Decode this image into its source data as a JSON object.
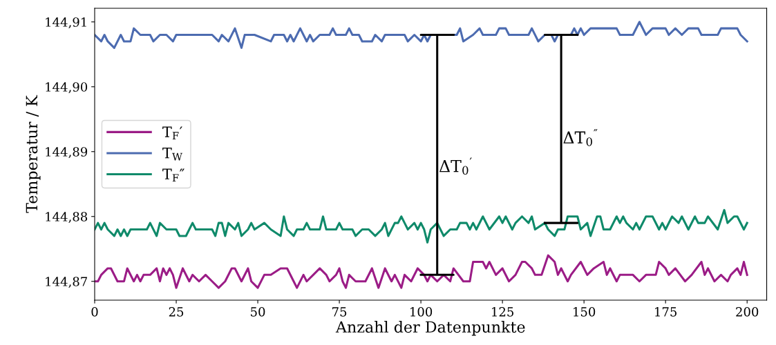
{
  "chart_data": {
    "type": "line",
    "xlabel": "Anzahl der Datenpunkte",
    "ylabel": "Temperatur / K",
    "xlim": [
      0,
      206
    ],
    "xticks": [
      0,
      25,
      50,
      75,
      100,
      125,
      150,
      175,
      200
    ],
    "ylim": [
      144.8671,
      144.9121
    ],
    "yticks": [
      {
        "value": 144.87,
        "label": "144,87"
      },
      {
        "value": 144.88,
        "label": "144,88"
      },
      {
        "value": 144.89,
        "label": "144,89"
      },
      {
        "value": 144.9,
        "label": "144,90"
      },
      {
        "value": 144.91,
        "label": "144,91"
      }
    ],
    "legend": "center left",
    "grid": false,
    "marker": "none",
    "line_style": "solid",
    "series": [
      {
        "name": "T$_{F}$′",
        "color": "#9b1c86",
        "x": [
          0,
          1,
          2,
          4,
          5,
          7,
          9,
          10,
          12,
          13,
          14,
          15,
          17,
          19,
          20,
          21,
          22,
          23,
          24,
          25,
          27,
          29,
          30,
          32,
          34,
          36,
          38,
          40,
          42,
          43,
          45,
          47,
          48,
          50,
          52,
          54,
          57,
          59,
          61,
          62,
          64,
          65,
          67,
          69,
          71,
          72,
          74,
          75,
          76,
          77,
          78,
          80,
          83,
          85,
          87,
          89,
          91,
          92,
          94,
          95,
          97,
          99,
          101,
          102,
          103,
          105,
          107,
          109,
          110,
          113,
          115,
          116,
          119,
          120,
          121,
          123,
          125,
          127,
          129,
          131,
          132,
          134,
          135,
          137,
          139,
          141,
          142,
          143,
          145,
          146,
          149,
          151,
          153,
          156,
          157,
          158,
          160,
          161,
          163,
          165,
          167,
          169,
          172,
          173,
          175,
          176,
          178,
          181,
          183,
          186,
          187,
          188,
          190,
          192,
          194,
          195,
          197,
          198,
          199,
          200
        ],
        "values": [
          144.87,
          144.87,
          144.871,
          144.872,
          144.872,
          144.87,
          144.87,
          144.872,
          144.87,
          144.871,
          144.87,
          144.871,
          144.871,
          144.872,
          144.87,
          144.872,
          144.871,
          144.872,
          144.871,
          144.869,
          144.872,
          144.87,
          144.871,
          144.87,
          144.871,
          144.87,
          144.869,
          144.87,
          144.872,
          144.872,
          144.87,
          144.872,
          144.87,
          144.869,
          144.871,
          144.871,
          144.872,
          144.872,
          144.87,
          144.869,
          144.871,
          144.87,
          144.871,
          144.872,
          144.871,
          144.87,
          144.871,
          144.872,
          144.87,
          144.869,
          144.871,
          144.87,
          144.87,
          144.872,
          144.869,
          144.872,
          144.87,
          144.871,
          144.869,
          144.871,
          144.87,
          144.872,
          144.871,
          144.87,
          144.871,
          144.87,
          144.871,
          144.87,
          144.872,
          144.87,
          144.87,
          144.873,
          144.873,
          144.872,
          144.873,
          144.871,
          144.872,
          144.87,
          144.871,
          144.873,
          144.873,
          144.872,
          144.871,
          144.871,
          144.874,
          144.873,
          144.871,
          144.872,
          144.87,
          144.871,
          144.873,
          144.871,
          144.872,
          144.873,
          144.871,
          144.872,
          144.87,
          144.871,
          144.871,
          144.871,
          144.87,
          144.871,
          144.871,
          144.873,
          144.872,
          144.871,
          144.872,
          144.87,
          144.871,
          144.873,
          144.871,
          144.872,
          144.87,
          144.871,
          144.87,
          144.871,
          144.872,
          144.871,
          144.873,
          144.871
        ]
      },
      {
        "name": "T$_{W}$",
        "color": "#4c6bb0",
        "x": [
          0,
          2,
          3,
          4,
          6,
          8,
          9,
          11,
          12,
          14,
          17,
          18,
          20,
          22,
          24,
          25,
          36,
          38,
          39,
          41,
          43,
          45,
          46,
          49,
          54,
          55,
          58,
          59,
          60,
          61,
          63,
          65,
          66,
          67,
          69,
          72,
          73,
          74,
          77,
          78,
          79,
          81,
          82,
          85,
          86,
          88,
          89,
          93,
          95,
          96,
          98,
          100,
          101,
          102,
          103,
          111,
          112,
          113,
          116,
          118,
          119,
          123,
          124,
          126,
          127,
          133,
          134,
          136,
          138,
          140,
          141,
          142,
          146,
          147,
          148,
          149,
          150,
          152,
          160,
          161,
          165,
          167,
          169,
          171,
          175,
          176,
          178,
          180,
          182,
          185,
          186,
          187,
          191,
          192,
          197,
          198,
          200
        ],
        "values": [
          144.908,
          144.907,
          144.908,
          144.907,
          144.906,
          144.908,
          144.907,
          144.907,
          144.909,
          144.908,
          144.908,
          144.907,
          144.908,
          144.908,
          144.907,
          144.908,
          144.908,
          144.907,
          144.908,
          144.907,
          144.909,
          144.906,
          144.908,
          144.908,
          144.907,
          144.908,
          144.908,
          144.907,
          144.908,
          144.907,
          144.909,
          144.907,
          144.908,
          144.907,
          144.908,
          144.908,
          144.909,
          144.908,
          144.908,
          144.909,
          144.908,
          144.908,
          144.907,
          144.907,
          144.908,
          144.907,
          144.908,
          144.908,
          144.908,
          144.907,
          144.908,
          144.907,
          144.908,
          144.907,
          144.908,
          144.908,
          144.909,
          144.907,
          144.908,
          144.909,
          144.908,
          144.908,
          144.909,
          144.909,
          144.908,
          144.908,
          144.909,
          144.907,
          144.908,
          144.908,
          144.907,
          144.908,
          144.908,
          144.909,
          144.908,
          144.909,
          144.908,
          144.909,
          144.909,
          144.908,
          144.908,
          144.91,
          144.908,
          144.909,
          144.909,
          144.908,
          144.909,
          144.908,
          144.909,
          144.909,
          144.908,
          144.908,
          144.908,
          144.909,
          144.909,
          144.908,
          144.907
        ]
      },
      {
        "name": "T$_{F}$″",
        "color": "#0f8a6a",
        "x": [
          0,
          1,
          2,
          3,
          4,
          6,
          7,
          8,
          9,
          10,
          11,
          16,
          17,
          19,
          20,
          22,
          25,
          26,
          28,
          29,
          30,
          31,
          36,
          37,
          38,
          39,
          40,
          41,
          43,
          44,
          45,
          47,
          48,
          49,
          52,
          54,
          57,
          58,
          59,
          61,
          62,
          64,
          65,
          66,
          69,
          70,
          71,
          74,
          75,
          76,
          79,
          80,
          82,
          84,
          86,
          88,
          89,
          90,
          92,
          93,
          94,
          95,
          96,
          98,
          99,
          100,
          101,
          102,
          103,
          105,
          107,
          109,
          111,
          112,
          114,
          115,
          116,
          117,
          119,
          121,
          124,
          125,
          126,
          128,
          129,
          131,
          133,
          134,
          135,
          138,
          139,
          141,
          142,
          144,
          145,
          148,
          149,
          151,
          152,
          154,
          155,
          156,
          158,
          160,
          161,
          162,
          163,
          165,
          166,
          167,
          169,
          171,
          173,
          174,
          175,
          177,
          179,
          180,
          182,
          184,
          185,
          187,
          188,
          191,
          193,
          194,
          196,
          197,
          199,
          200
        ],
        "values": [
          144.878,
          144.879,
          144.878,
          144.879,
          144.878,
          144.877,
          144.878,
          144.877,
          144.878,
          144.877,
          144.878,
          144.878,
          144.879,
          144.877,
          144.879,
          144.878,
          144.878,
          144.877,
          144.877,
          144.878,
          144.879,
          144.878,
          144.878,
          144.877,
          144.879,
          144.879,
          144.877,
          144.879,
          144.878,
          144.879,
          144.877,
          144.878,
          144.879,
          144.878,
          144.879,
          144.878,
          144.877,
          144.88,
          144.878,
          144.877,
          144.878,
          144.878,
          144.879,
          144.878,
          144.878,
          144.88,
          144.878,
          144.878,
          144.879,
          144.878,
          144.878,
          144.877,
          144.878,
          144.878,
          144.877,
          144.878,
          144.879,
          144.877,
          144.879,
          144.879,
          144.88,
          144.879,
          144.878,
          144.879,
          144.878,
          144.879,
          144.878,
          144.876,
          144.878,
          144.879,
          144.877,
          144.878,
          144.878,
          144.879,
          144.879,
          144.878,
          144.879,
          144.878,
          144.88,
          144.878,
          144.88,
          144.879,
          144.88,
          144.878,
          144.879,
          144.88,
          144.879,
          144.88,
          144.878,
          144.879,
          144.878,
          144.877,
          144.878,
          144.878,
          144.88,
          144.88,
          144.878,
          144.879,
          144.877,
          144.88,
          144.88,
          144.878,
          144.878,
          144.88,
          144.879,
          144.88,
          144.879,
          144.878,
          144.879,
          144.878,
          144.88,
          144.88,
          144.878,
          144.879,
          144.878,
          144.88,
          144.879,
          144.88,
          144.878,
          144.88,
          144.879,
          144.879,
          144.88,
          144.878,
          144.881,
          144.879,
          144.88,
          144.88,
          144.878,
          144.879
        ]
      },
      {
        "color": "#000000",
        "x": [
          100,
          110,
          105,
          105,
          100,
          110
        ],
        "values": [
          144.871,
          144.871,
          144.871,
          144.908,
          144.908,
          144.908
        ]
      },
      {
        "color": "#000000",
        "x": [
          138,
          148,
          143,
          143,
          138,
          148
        ],
        "values": [
          144.879,
          144.879,
          144.879,
          144.908,
          144.908,
          144.908
        ]
      }
    ],
    "annotations": [
      "ΔT$_{0}$$^{′}$",
      "ΔT$_{0}$$^{″}$"
    ]
  }
}
